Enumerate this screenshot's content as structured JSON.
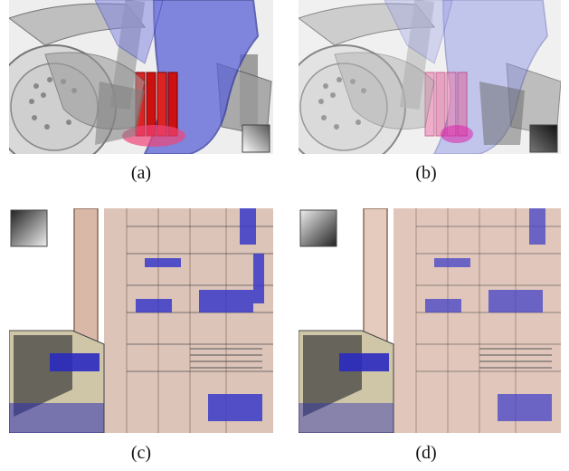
{
  "figure": {
    "captions": {
      "a": "(a)",
      "b": "(b)",
      "c": "(c)",
      "d": "(d)"
    }
  }
}
